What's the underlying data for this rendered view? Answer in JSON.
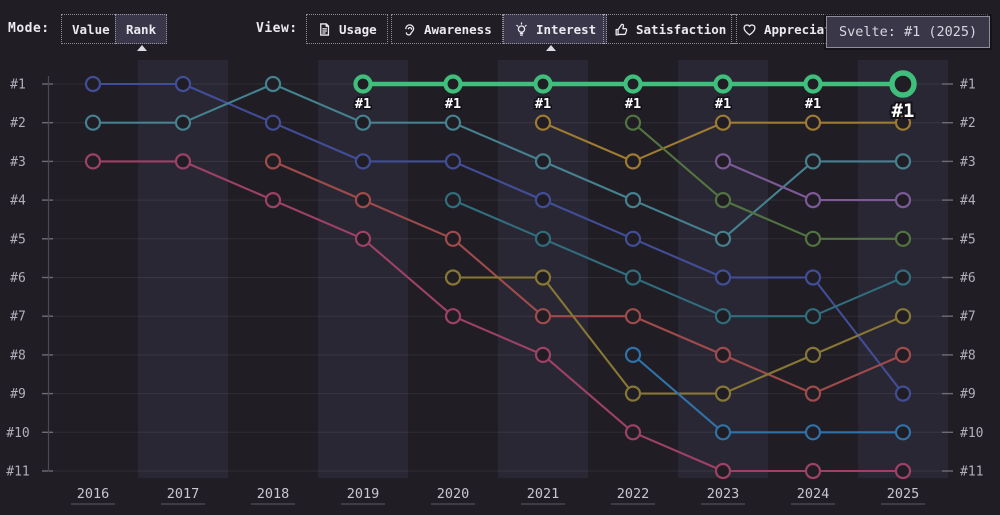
{
  "mode": {
    "label": "Mode:",
    "options": [
      {
        "label": "Value",
        "selected": false
      },
      {
        "label": "Rank",
        "selected": true
      }
    ]
  },
  "view": {
    "label": "View:",
    "options": [
      {
        "label": "Usage",
        "icon": "document-icon",
        "selected": false
      },
      {
        "label": "Awareness",
        "icon": "ear-icon",
        "selected": false
      },
      {
        "label": "Interest",
        "icon": "lightbulb-icon",
        "selected": true
      },
      {
        "label": "Satisfaction",
        "icon": "thumbs-up-icon",
        "selected": false
      },
      {
        "label": "Appreciation",
        "icon": "heart-icon",
        "selected": false
      }
    ]
  },
  "tooltip": {
    "text": "Svelte: #1 (2025)"
  },
  "chart_data": {
    "type": "line",
    "subtype": "rank-bump",
    "x": [
      2016,
      2017,
      2018,
      2019,
      2020,
      2021,
      2022,
      2023,
      2024,
      2025
    ],
    "x_labels": [
      "2016",
      "2017",
      "2018",
      "2019",
      "2020",
      "2021",
      "2022",
      "2023",
      "2024",
      "2025"
    ],
    "y_tick_labels": [
      "#1",
      "#2",
      "#3",
      "#4",
      "#5",
      "#6",
      "#7",
      "#8",
      "#9",
      "#10",
      "#11"
    ],
    "ylim": [
      1,
      11
    ],
    "y_inverted": true,
    "grid": true,
    "band_years": [
      2017,
      2019,
      2021,
      2023,
      2025
    ],
    "hover": {
      "series": "svelte",
      "x": 2025
    },
    "series": [
      {
        "name": "indigo",
        "color": "#414e97",
        "highlighted": false,
        "ranks": [
          1,
          1,
          2,
          3,
          3,
          4,
          5,
          6,
          6,
          9
        ]
      },
      {
        "name": "teal",
        "color": "#45818f",
        "highlighted": false,
        "ranks": [
          2,
          2,
          1,
          2,
          2,
          3,
          4,
          5,
          3,
          3
        ]
      },
      {
        "name": "rose",
        "color": "#9d4166",
        "highlighted": false,
        "ranks": [
          3,
          3,
          4,
          5,
          7,
          8,
          10,
          11,
          11,
          11
        ]
      },
      {
        "name": "brick",
        "color": "#9f4b4b",
        "highlighted": false,
        "ranks": [
          null,
          null,
          3,
          4,
          5,
          7,
          7,
          8,
          9,
          8
        ]
      },
      {
        "name": "dark-cyan",
        "color": "#306d7d",
        "highlighted": false,
        "ranks": [
          null,
          null,
          null,
          null,
          4,
          5,
          6,
          7,
          7,
          6
        ]
      },
      {
        "name": "olive",
        "color": "#877735",
        "highlighted": false,
        "ranks": [
          null,
          null,
          null,
          null,
          6,
          6,
          9,
          9,
          8,
          7
        ]
      },
      {
        "name": "mustard",
        "color": "#9f7b31",
        "highlighted": false,
        "ranks": [
          null,
          null,
          null,
          null,
          null,
          2,
          3,
          2,
          2,
          2
        ]
      },
      {
        "name": "dark-green",
        "color": "#517441",
        "highlighted": false,
        "ranks": [
          null,
          null,
          null,
          null,
          null,
          null,
          2,
          4,
          5,
          5
        ]
      },
      {
        "name": "steel-blue",
        "color": "#3071a7",
        "highlighted": false,
        "ranks": [
          null,
          null,
          null,
          null,
          null,
          null,
          8,
          10,
          10,
          10
        ]
      },
      {
        "name": "purple",
        "color": "#7c5997",
        "highlighted": false,
        "ranks": [
          null,
          null,
          null,
          null,
          null,
          null,
          null,
          3,
          4,
          4
        ]
      },
      {
        "name": "svelte",
        "color": "#3fbe7c",
        "highlighted": true,
        "ranks": [
          null,
          null,
          null,
          1,
          1,
          1,
          1,
          1,
          1,
          1
        ],
        "point_labels": [
          null,
          null,
          null,
          "#1",
          "#1",
          "#1",
          "#1",
          "#1",
          "#1",
          "#1"
        ]
      }
    ]
  }
}
